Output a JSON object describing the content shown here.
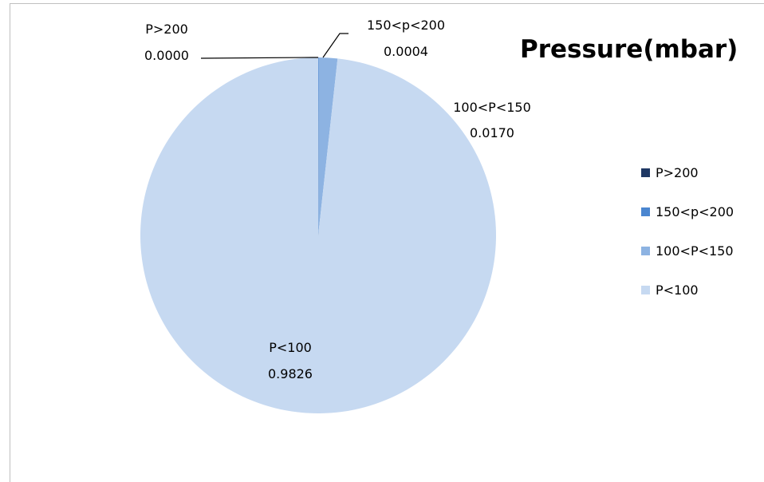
{
  "chart_data": {
    "type": "pie",
    "title": "Pressure(mbar)",
    "legend_position": "right",
    "slices": [
      {
        "label": "P>200",
        "value": 0.0,
        "value_text": "0.0000",
        "color": "#1f3864"
      },
      {
        "label": "150<p<200",
        "value": 0.0004,
        "value_text": "0.0004",
        "color": "#4a86d0"
      },
      {
        "label": "100<P<150",
        "value": 0.017,
        "value_text": "0.0170",
        "color": "#8db3e2"
      },
      {
        "label": "P<100",
        "value": 0.9826,
        "value_text": "0.9826",
        "color": "#c6d9f1"
      }
    ]
  }
}
